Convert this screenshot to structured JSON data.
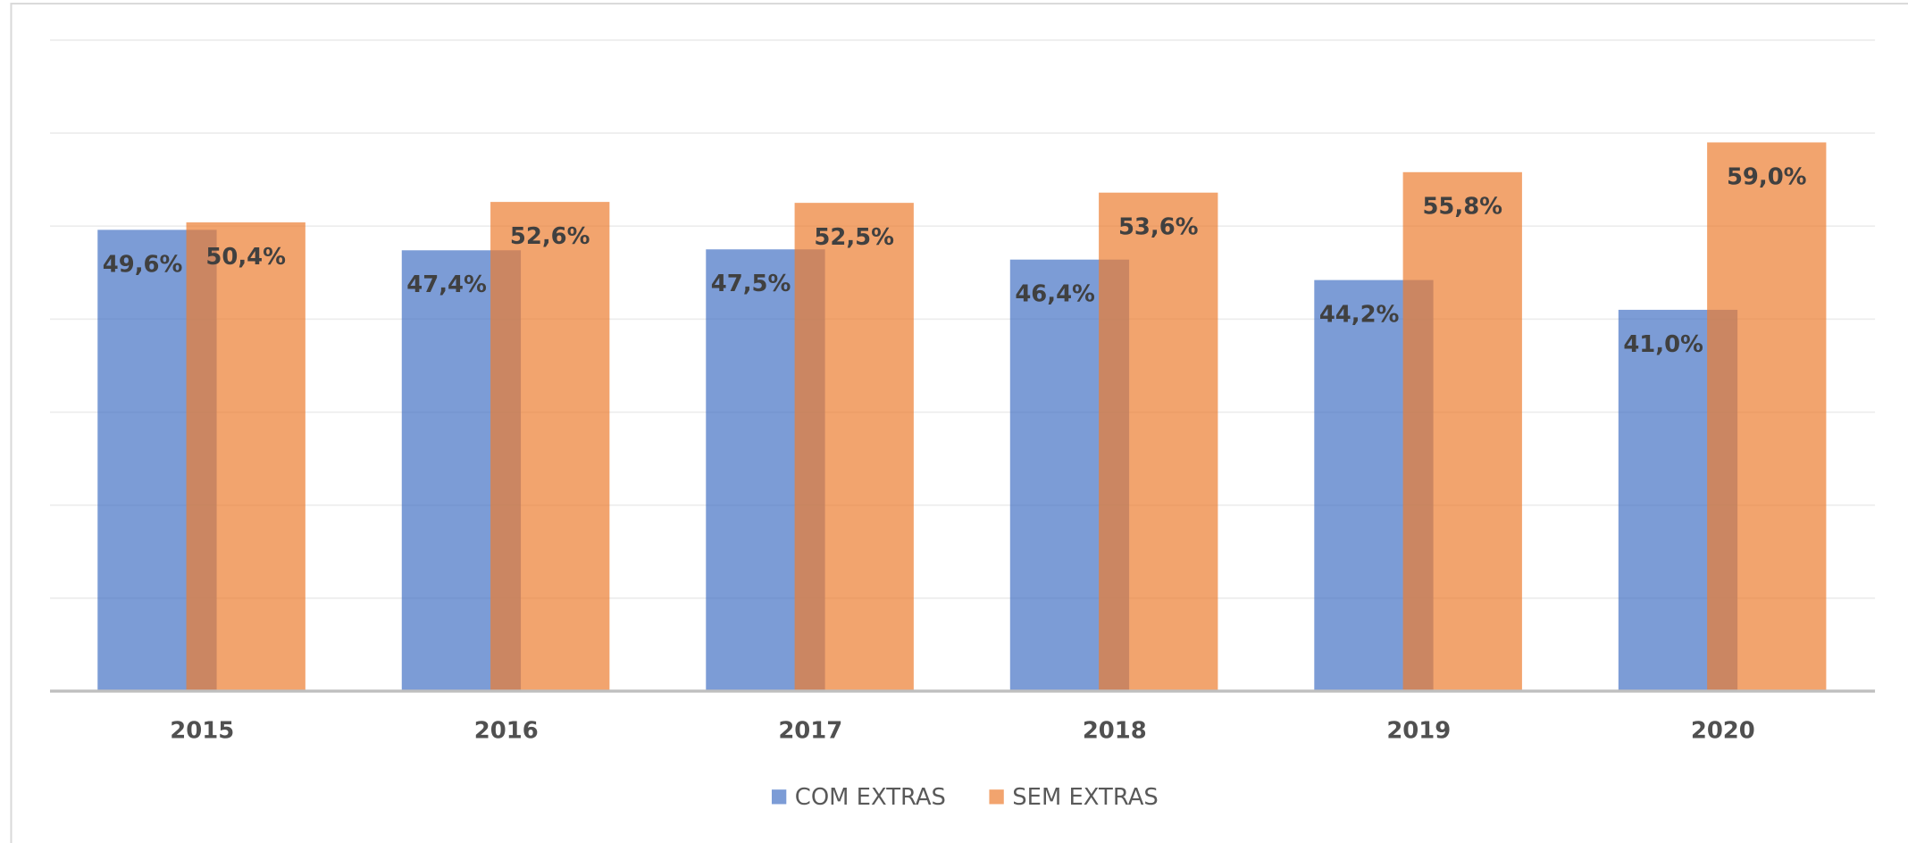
{
  "chart_data": {
    "type": "bar",
    "categories": [
      "2015",
      "2016",
      "2017",
      "2018",
      "2019",
      "2020"
    ],
    "series": [
      {
        "name": "COM EXTRAS",
        "color": "#4472c4",
        "values": [
          49.6,
          47.4,
          47.5,
          46.4,
          44.2,
          41.0
        ],
        "value_labels": [
          "49,6%",
          "47,4%",
          "47,5%",
          "46,4%",
          "44,2%",
          "41,0%"
        ]
      },
      {
        "name": "SEM EXTRAS",
        "color": "#ed7d31",
        "values": [
          50.4,
          52.6,
          52.5,
          53.6,
          55.8,
          59.0
        ],
        "value_labels": [
          "50,4%",
          "52,6%",
          "52,5%",
          "53,6%",
          "55,8%",
          "59,0%"
        ]
      }
    ],
    "ylim": [
      0,
      70
    ],
    "yticks": [
      0,
      10,
      20,
      30,
      40,
      50,
      60,
      70
    ],
    "grid": true,
    "legend": "bottom"
  }
}
